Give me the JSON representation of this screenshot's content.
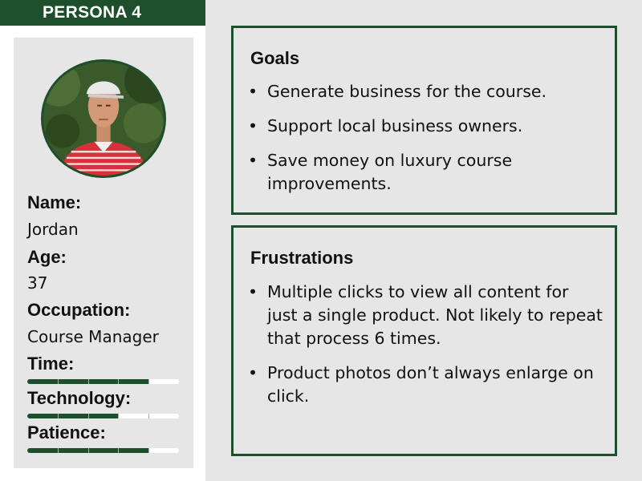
{
  "header": {
    "badge": "PERSONA 4"
  },
  "profile": {
    "photo_alt": "Jordan photo",
    "fields": [
      {
        "label": "Name:",
        "value": "Jordan"
      },
      {
        "label": "Age:",
        "value": "37"
      },
      {
        "label": "Occupation:",
        "value": "Course Manager"
      }
    ],
    "meters": [
      {
        "label": "Time:",
        "level": 0.8
      },
      {
        "label": "Technology:",
        "level": 0.6
      },
      {
        "label": "Patience:",
        "level": 0.8
      }
    ]
  },
  "goals": {
    "title": "Goals",
    "items": [
      "Generate business for the course.",
      "Support local business owners.",
      "Save money on luxury course improvements."
    ]
  },
  "frustrations": {
    "title": "Frustrations",
    "items": [
      "Multiple clicks to view all content for just a single product. Not likely to repeat that process 6 times.",
      "Product photos don’t always enlarge on click."
    ]
  },
  "colors": {
    "accent": "#1d4f2c",
    "background": "#e6e6e6",
    "panel": "#ffffff"
  }
}
